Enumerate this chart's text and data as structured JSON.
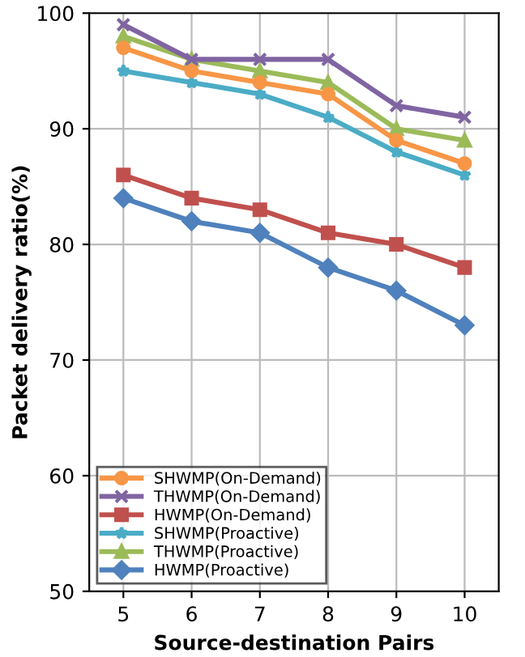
{
  "chart_data": {
    "type": "line",
    "xlabel": "Source-destination Pairs",
    "ylabel": "Packet delivery ratio(%)",
    "categories": [
      "5",
      "6",
      "7",
      "8",
      "9",
      "10"
    ],
    "series": [
      {
        "name": "SHWMP(On-Demand)",
        "color": "#f79646",
        "marker": "circle",
        "values": [
          97,
          95,
          94,
          93,
          89,
          87
        ]
      },
      {
        "name": "THWMP(On-Demand)",
        "color": "#8064a2",
        "marker": "cross",
        "values": [
          99,
          96,
          96,
          96,
          92,
          91
        ]
      },
      {
        "name": "HWMP(On-Demand)",
        "color": "#c0504d",
        "marker": "square",
        "values": [
          86,
          84,
          83,
          81,
          80,
          78
        ]
      },
      {
        "name": "SHWMP(Proactive)",
        "color": "#4bacc6",
        "marker": "star",
        "values": [
          95,
          94,
          93,
          91,
          88,
          86
        ]
      },
      {
        "name": "THWMP(Proactive)",
        "color": "#9bbb59",
        "marker": "triangle",
        "values": [
          98,
          96,
          95,
          94,
          90,
          89
        ]
      },
      {
        "name": "HWMP(Proactive)",
        "color": "#4f81bd",
        "marker": "diamond",
        "values": [
          84,
          82,
          81,
          78,
          76,
          73
        ]
      }
    ],
    "ylim": [
      50,
      100
    ],
    "yticks": [
      50,
      60,
      70,
      80,
      90,
      100
    ],
    "grid": true,
    "legend": "bottom left"
  }
}
